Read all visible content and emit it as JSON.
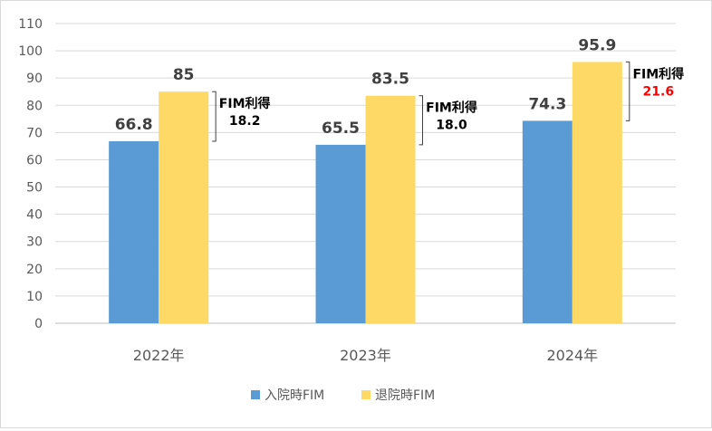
{
  "chart_data": {
    "type": "bar",
    "categories": [
      "2022年",
      "2023年",
      "2024年"
    ],
    "series": [
      {
        "name": "入院時FIM",
        "color": "#5b9bd5",
        "values": [
          66.8,
          65.5,
          74.3
        ]
      },
      {
        "name": "退院時FIM",
        "color": "#ffd966",
        "values": [
          85,
          83.5,
          95.9
        ]
      }
    ],
    "value_labels": [
      [
        "66.8",
        "65.5",
        "74.3"
      ],
      [
        "85",
        "83.5",
        "95.9"
      ]
    ],
    "ylim": [
      0,
      110
    ],
    "yticks": [
      0,
      10,
      20,
      30,
      40,
      50,
      60,
      70,
      80,
      90,
      100,
      110
    ],
    "grid": true,
    "legend_position": "bottom",
    "annotations": [
      {
        "title": "FIM利得",
        "value": "18.2",
        "value_color": "#000000"
      },
      {
        "title": "FIM利得",
        "value": "18.0",
        "value_color": "#000000"
      },
      {
        "title": "FIM利得",
        "value": "21.6",
        "value_color": "#ff0000"
      }
    ]
  }
}
